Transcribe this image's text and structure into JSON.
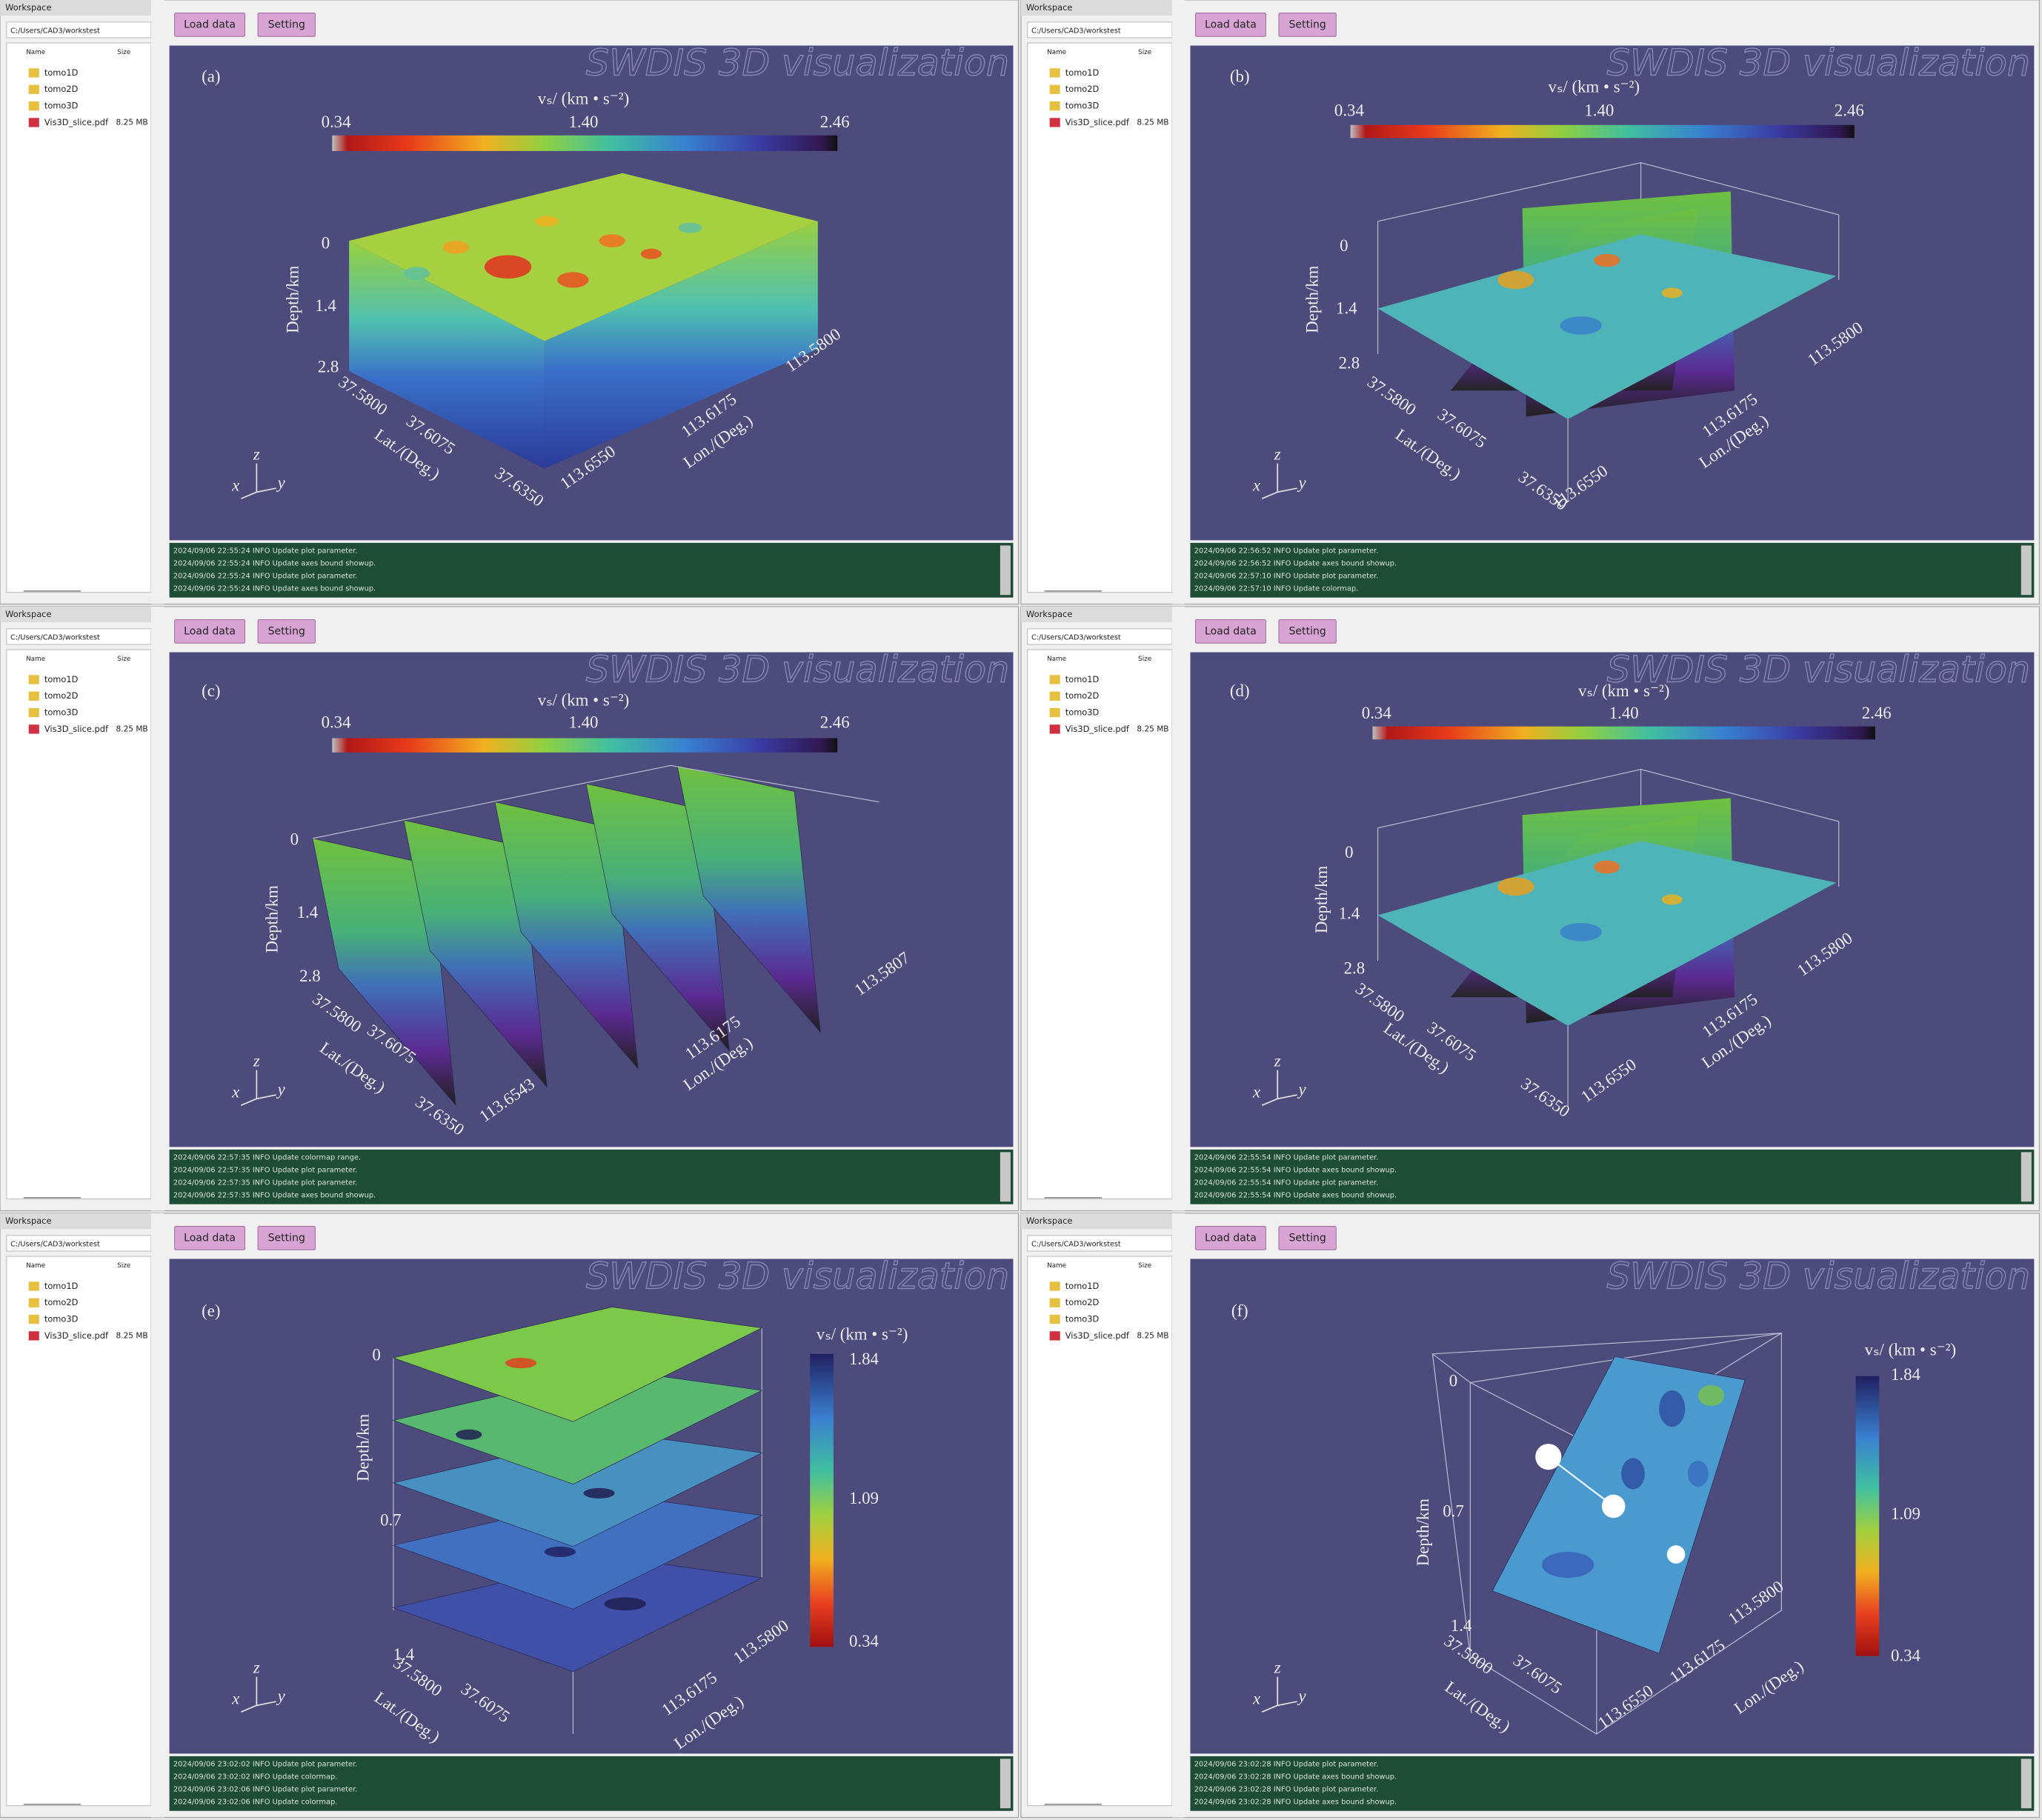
{
  "panels": [
    {
      "workspace": {
        "title": "Workspace",
        "path": "C:/Users/CAD3/workstest",
        "columns": [
          "Name",
          "Size"
        ],
        "items": [
          {
            "name": "tomo1D"
          },
          {
            "name": "tomo2D"
          },
          {
            "name": "tomo3D"
          },
          {
            "name": "Vis3D_slice.pdf",
            "size": "8.25 MB"
          }
        ]
      },
      "buttons": [
        "Load data",
        "Setting"
      ],
      "watermark": "SWDIS 3D visualization",
      "label": "(a)",
      "colorbar": {
        "title": "vₛ/ (km • s⁻²)",
        "ticks": [
          "0.34",
          "1.40",
          "2.46"
        ]
      },
      "depth_axis": {
        "title": "Depth/km",
        "ticks": [
          "0",
          "1.4",
          "2.8"
        ]
      },
      "lat_axis": {
        "title": "Lat./(Deg.)",
        "ticks": [
          "37.5800",
          "37.6075",
          "37.6350"
        ]
      },
      "lon_axis": {
        "title": "Lon./(Deg.)",
        "ticks": [
          "113.6550",
          "113.6175",
          "113.5800"
        ]
      },
      "triad": [
        "x",
        "y",
        "z"
      ],
      "log": [
        "2024/09/06 22:55:24 INFO Update plot parameter.",
        "2024/09/06 22:55:24 INFO Update axes bound showup.",
        "2024/09/06 22:55:24 INFO Update plot parameter.",
        "2024/09/06 22:55:24 INFO Update axes bound showup."
      ]
    },
    {
      "workspace": {
        "title": "Workspace",
        "path": "C:/Users/CAD3/workstest",
        "columns": [
          "Name",
          "Size"
        ],
        "items": [
          {
            "name": "tomo1D"
          },
          {
            "name": "tomo2D"
          },
          {
            "name": "tomo3D"
          },
          {
            "name": "Vis3D_slice.pdf",
            "size": "8.25 MB"
          }
        ]
      },
      "buttons": [
        "Load data",
        "Setting"
      ],
      "watermark": "SWDIS 3D visualization",
      "label": "(b)",
      "colorbar": {
        "title": "vₛ/ (km • s⁻²)",
        "ticks": [
          "0.34",
          "1.40",
          "2.46"
        ]
      },
      "depth_axis": {
        "title": "Depth/km",
        "ticks": [
          "0",
          "1.4",
          "2.8"
        ]
      },
      "lat_axis": {
        "title": "Lat./(Deg.)",
        "ticks": [
          "37.5800",
          "37.6075",
          "37.6350"
        ]
      },
      "lon_axis": {
        "title": "Lon./(Deg.)",
        "ticks": [
          "113.6550",
          "113.6175",
          "113.5800"
        ]
      },
      "triad": [
        "x",
        "y",
        "z"
      ],
      "log": [
        "2024/09/06 22:56:52 INFO Update plot parameter.",
        "2024/09/06 22:56:52 INFO Update axes bound showup.",
        "2024/09/06 22:57:10 INFO Update plot parameter.",
        "2024/09/06 22:57:10 INFO Update colormap."
      ]
    },
    {
      "workspace": {
        "title": "Workspace",
        "path": "C:/Users/CAD3/workstest",
        "columns": [
          "Name",
          "Size"
        ],
        "items": [
          {
            "name": "tomo1D"
          },
          {
            "name": "tomo2D"
          },
          {
            "name": "tomo3D"
          },
          {
            "name": "Vis3D_slice.pdf",
            "size": "8.25 MB"
          }
        ]
      },
      "buttons": [
        "Load data",
        "Setting"
      ],
      "watermark": "SWDIS 3D visualization",
      "label": "(c)",
      "colorbar": {
        "title": "vₛ/ (km • s⁻²)",
        "ticks": [
          "0.34",
          "1.40",
          "2.46"
        ]
      },
      "depth_axis": {
        "title": "Depth/km",
        "ticks": [
          "0",
          "1.4",
          "2.8"
        ]
      },
      "lat_axis": {
        "title": "Lat./(Deg.)",
        "ticks": [
          "37.5800",
          "37.6075",
          "37.6350"
        ]
      },
      "lon_axis": {
        "title": "Lon./(Deg.)",
        "ticks": [
          "113.6543",
          "113.6175",
          "113.5807"
        ]
      },
      "triad": [
        "x",
        "y",
        "z"
      ],
      "log": [
        "2024/09/06 22:57:35 INFO Update colormap range.",
        "2024/09/06 22:57:35 INFO Update plot parameter.",
        "2024/09/06 22:57:35 INFO Update plot parameter.",
        "2024/09/06 22:57:35 INFO Update axes bound showup."
      ]
    },
    {
      "workspace": {
        "title": "Workspace",
        "path": "C:/Users/CAD3/workstest",
        "columns": [
          "Name",
          "Size"
        ],
        "items": [
          {
            "name": "tomo1D"
          },
          {
            "name": "tomo2D"
          },
          {
            "name": "tomo3D"
          },
          {
            "name": "Vis3D_slice.pdf",
            "size": "8.25 MB"
          }
        ]
      },
      "buttons": [
        "Load data",
        "Setting"
      ],
      "watermark": "SWDIS 3D visualization",
      "label": "(d)",
      "colorbar": {
        "title": "vₛ/ (km • s⁻²)",
        "ticks": [
          "0.34",
          "1.40",
          "2.46"
        ]
      },
      "depth_axis": {
        "title": "Depth/km",
        "ticks": [
          "0",
          "1.4",
          "2.8"
        ]
      },
      "lat_axis": {
        "title": "Lat./(Deg.)",
        "ticks": [
          "37.5800",
          "37.6075",
          "37.6350"
        ]
      },
      "lon_axis": {
        "title": "Lon./(Deg.)",
        "ticks": [
          "113.6550",
          "113.6175",
          "113.5800"
        ]
      },
      "triad": [
        "x",
        "y",
        "z"
      ],
      "log": [
        "2024/09/06 22:55:54 INFO Update plot parameter.",
        "2024/09/06 22:55:54 INFO Update axes bound showup.",
        "2024/09/06 22:55:54 INFO Update plot parameter.",
        "2024/09/06 22:55:54 INFO Update axes bound showup."
      ]
    },
    {
      "workspace": {
        "title": "Workspace",
        "path": "C:/Users/CAD3/workstest",
        "columns": [
          "Name",
          "Size"
        ],
        "items": [
          {
            "name": "tomo1D"
          },
          {
            "name": "tomo2D"
          },
          {
            "name": "tomo3D"
          },
          {
            "name": "Vis3D_slice.pdf",
            "size": "8.25 MB"
          }
        ]
      },
      "buttons": [
        "Load data",
        "Setting"
      ],
      "watermark": "SWDIS 3D visualization",
      "label": "(e)",
      "colorbar": {
        "title": "vₛ/ (km • s⁻²)",
        "ticks": [
          "1.84",
          "1.09",
          "0.34"
        ]
      },
      "depth_axis": {
        "title": "Depth/km",
        "ticks": [
          "0",
          "0.7",
          "1.4"
        ]
      },
      "lat_axis": {
        "title": "Lat./(Deg.)",
        "ticks": [
          "37.5800",
          "37.6075"
        ]
      },
      "lon_axis": {
        "title": "Lon./(Deg.)",
        "ticks": [
          "113.6175",
          "113.5800"
        ]
      },
      "triad": [
        "x",
        "y",
        "z"
      ],
      "log": [
        "2024/09/06 23:02:02 INFO Update plot parameter.",
        "2024/09/06 23:02:02 INFO Update colormap.",
        "2024/09/06 23:02:06 INFO Update plot parameter.",
        "2024/09/06 23:02:06 INFO Update colormap."
      ]
    },
    {
      "workspace": {
        "title": "Workspace",
        "path": "C:/Users/CAD3/workstest",
        "columns": [
          "Name",
          "Size"
        ],
        "items": [
          {
            "name": "tomo1D"
          },
          {
            "name": "tomo2D"
          },
          {
            "name": "tomo3D"
          },
          {
            "name": "Vis3D_slice.pdf",
            "size": "8.25 MB"
          }
        ]
      },
      "buttons": [
        "Load data",
        "Setting"
      ],
      "watermark": "SWDIS 3D visualization",
      "label": "(f)",
      "colorbar": {
        "title": "vₛ/ (km • s⁻²)",
        "ticks": [
          "1.84",
          "1.09",
          "0.34"
        ]
      },
      "depth_axis": {
        "title": "Depth/km",
        "ticks": [
          "0",
          "0.7",
          "1.4"
        ]
      },
      "lat_axis": {
        "title": "Lat./(Deg.)",
        "ticks": [
          "37.5800",
          "37.6075"
        ]
      },
      "lon_axis": {
        "title": "Lon./(Deg.)",
        "ticks": [
          "113.6550",
          "113.6175",
          "113.5800"
        ]
      },
      "triad": [
        "x",
        "y",
        "z"
      ],
      "log": [
        "2024/09/06 23:02:28 INFO Update plot parameter.",
        "2024/09/06 23:02:28 INFO Update axes bound showup.",
        "2024/09/06 23:02:28 INFO Update plot parameter.",
        "2024/09/06 23:02:28 INFO Update axes bound showup."
      ]
    }
  ]
}
